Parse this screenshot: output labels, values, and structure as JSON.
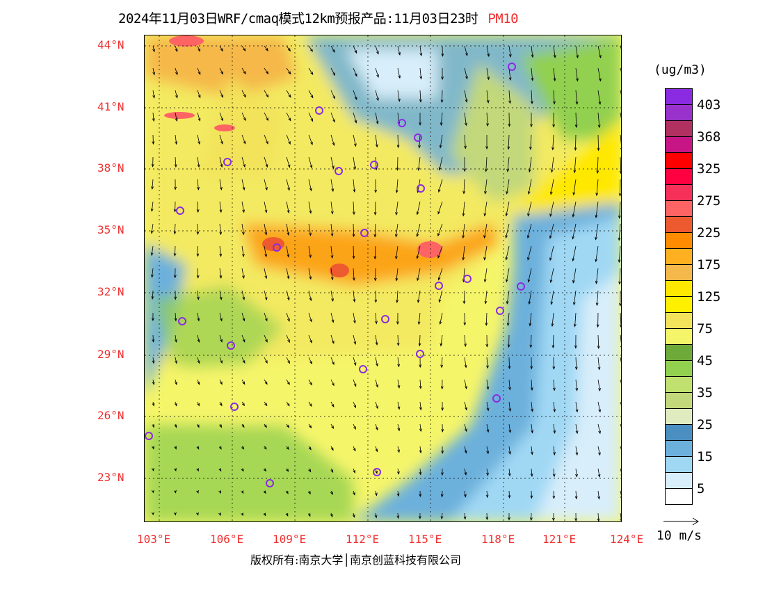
{
  "title": {
    "main": "2024年11月03日WRF/cmaq模式12km预报产品:11月03日23时",
    "pollutant": "PM10"
  },
  "lat_labels": [
    "44°N",
    "41°N",
    "38°N",
    "35°N",
    "32°N",
    "29°N",
    "26°N",
    "23°N"
  ],
  "lon_labels": [
    "103°E",
    "106°E",
    "109°E",
    "112°E",
    "115°E",
    "118°E",
    "121°E",
    "124°E"
  ],
  "copyright": "版权所有:南京大学│南京创蓝科技有限公司",
  "legend": {
    "unit": "(ug/m3)",
    "colors": [
      "#8a2be2",
      "#9932cc",
      "#b03060",
      "#c71585",
      "#ff0000",
      "#ff0040",
      "#f7305a",
      "#ff6464",
      "#ee5a30",
      "#ff8c00",
      "#ffb020",
      "#f5b84a",
      "#ffe800",
      "#fff000",
      "#f2e35a",
      "#f5f56a",
      "#6eaa3a",
      "#92d050",
      "#c0e070",
      "#c2d87a",
      "#e0ecc0",
      "#4a8fc0",
      "#6cb0dc",
      "#a0d8f4",
      "#d8eefa",
      "#ffffff"
    ],
    "labels": [
      "403",
      "368",
      "325",
      "275",
      "225",
      "175",
      "125",
      "75",
      "45",
      "35",
      "25",
      "15",
      "5"
    ],
    "wind_reference": "10 m/s"
  }
}
